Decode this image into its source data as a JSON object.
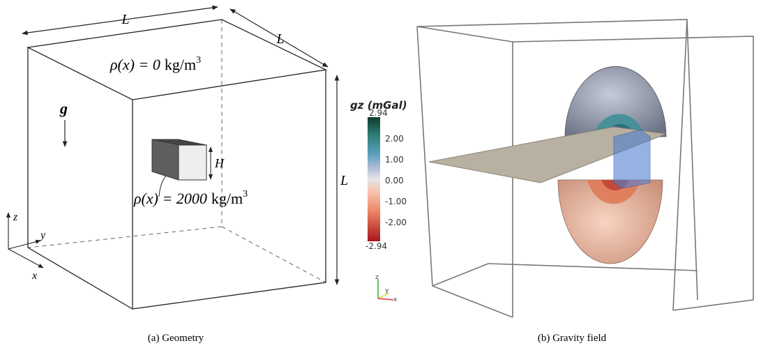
{
  "geometry": {
    "caption": "(a) Geometry",
    "dimension_labels": [
      "L",
      "L",
      "L"
    ],
    "block_height": "H",
    "gravity": "g",
    "axes": [
      "z",
      "y",
      "x"
    ],
    "density_top": {
      "lhs": "ρ(x) = 0",
      "unit": "kg/m",
      "exponent": "3"
    },
    "density_block": {
      "lhs": "ρ(x) = 2000",
      "unit": "kg/m",
      "exponent": "3"
    }
  },
  "gravity_field": {
    "caption": "(b) Gravity field",
    "colorbar": {
      "title": "gz (mGal)",
      "ticks": [
        "2.94",
        "2.00",
        "1.00",
        "0.00",
        "-1.00",
        "-2.00",
        "-2.94"
      ]
    },
    "axes": [
      "z",
      "y",
      "x"
    ]
  }
}
